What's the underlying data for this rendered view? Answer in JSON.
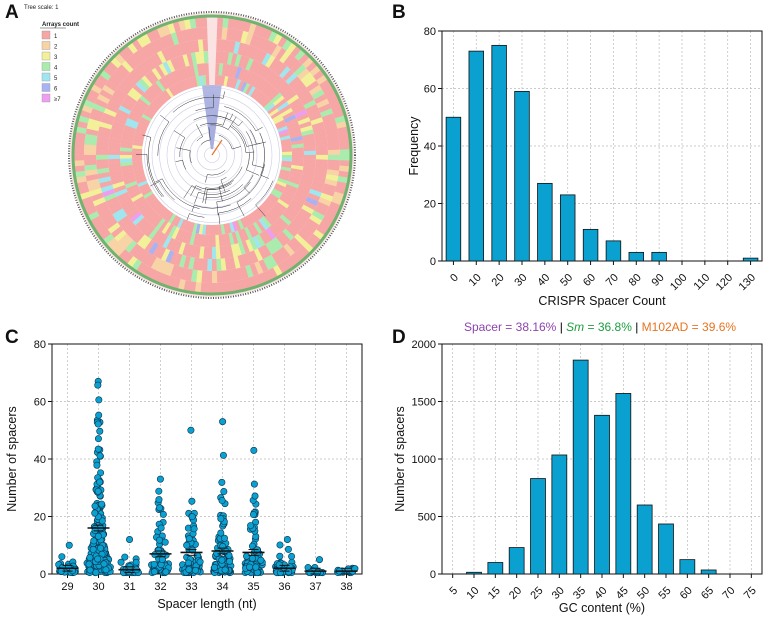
{
  "panels": {
    "a": "A",
    "b": "B",
    "c": "C",
    "d": "D"
  },
  "tree": {
    "scale_label": "Tree scale: 1",
    "legend_title": "Arrays count",
    "legend": [
      {
        "label": "1",
        "color": "#f7a6a6"
      },
      {
        "label": "2",
        "color": "#f7d3a6"
      },
      {
        "label": "3",
        "color": "#f3f09a"
      },
      {
        "label": "4",
        "color": "#a9ecae"
      },
      {
        "label": "5",
        "color": "#9fe6ee"
      },
      {
        "label": "6",
        "color": "#a9b3f3"
      },
      {
        "label": "≥7",
        "color": "#ee9ef0"
      }
    ]
  },
  "bar_color": "#0aa0d0",
  "annotation": {
    "spacer": "Spacer = 38.16%",
    "sep1": " | ",
    "sm_label": "Sm",
    "sm_value": " = 36.8%",
    "sep2": " | ",
    "m102": "M102AD = 39.6%",
    "spacer_color": "#8e44ad",
    "sm_color": "#1b9e3e",
    "m102_color": "#e8731f"
  },
  "chart_data": [
    {
      "id": "B",
      "type": "bar",
      "categories": [
        "0",
        "10",
        "20",
        "30",
        "40",
        "50",
        "60",
        "70",
        "80",
        "90",
        "100",
        "110",
        "120",
        "130"
      ],
      "values": [
        50,
        73,
        75,
        59,
        27,
        23,
        11,
        7,
        3,
        3,
        0,
        0,
        0,
        1
      ],
      "xlabel": "CRISPR Spacer Count",
      "ylabel": "Frequency",
      "ylim": [
        0,
        80
      ],
      "yticks": [
        0,
        20,
        40,
        60,
        80
      ],
      "grid": true
    },
    {
      "id": "C",
      "type": "scatter",
      "categories": [
        "29",
        "30",
        "31",
        "32",
        "33",
        "34",
        "35",
        "36",
        "37",
        "38"
      ],
      "means": [
        2,
        16,
        1.5,
        7,
        7.5,
        8,
        7.5,
        2,
        1,
        1
      ],
      "maxima": [
        10,
        67,
        12,
        33,
        50,
        53,
        43,
        12,
        5,
        2
      ],
      "xlabel": "Spacer length (nt)",
      "ylabel": "Number of spacers",
      "ylim": [
        0,
        80
      ],
      "yticks": [
        0,
        20,
        40,
        60,
        80
      ],
      "grid": true
    },
    {
      "id": "D",
      "type": "bar",
      "categories": [
        "5",
        "10",
        "15",
        "20",
        "25",
        "30",
        "35",
        "40",
        "45",
        "50",
        "55",
        "60",
        "65",
        "70",
        "75"
      ],
      "values": [
        0,
        15,
        100,
        230,
        830,
        1035,
        1860,
        1380,
        1570,
        600,
        435,
        125,
        35,
        0,
        0
      ],
      "xlabel": "GC content (%)",
      "ylabel": "Number of spacers",
      "ylim": [
        0,
        2000
      ],
      "yticks": [
        0,
        500,
        1000,
        1500,
        2000
      ],
      "grid": true
    }
  ]
}
